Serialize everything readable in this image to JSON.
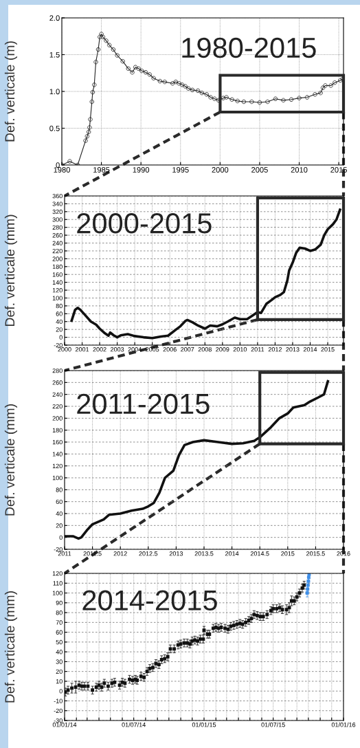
{
  "chart_data": [
    {
      "type": "line",
      "ylabel": "Def. verticale (m)",
      "annotations": [
        "1980-2015"
      ],
      "marker": "circle",
      "grid": true,
      "xlim": [
        1980,
        2015.6
      ],
      "xticks": [
        1980,
        1985,
        1990,
        1995,
        2000,
        2005,
        2010,
        2015
      ],
      "ylim": [
        0,
        2.0
      ],
      "yticks": [
        0,
        0.5,
        {
          "value": 1,
          "label": "1.0"
        },
        1.5,
        {
          "value": 2,
          "label": "2.0"
        }
      ],
      "x": [
        1980,
        1981,
        1982,
        1983,
        1983.2,
        1983.4,
        1983.5,
        1983.6,
        1983.8,
        1983.9,
        1984.1,
        1984.3,
        1984.6,
        1984.8,
        1985,
        1985.2,
        1985.6,
        1986.0,
        1986.5,
        1987.0,
        1987.7,
        1988.4,
        1988.9,
        1989.3,
        1989.7,
        1990.1,
        1990.6,
        1991.1,
        1991.6,
        1992.4,
        1993,
        1994,
        1994.4,
        1994.8,
        1995.2,
        1995.6,
        1996,
        1996.5,
        1997.2,
        1997.7,
        1998.3,
        1998.8,
        1999.3,
        1999.8,
        2000.4,
        2000.8,
        2001.5,
        2002.2,
        2003,
        2004,
        2005,
        2006,
        2007,
        2008,
        2009,
        2010,
        2011,
        2012,
        2012.7,
        2013,
        2013.3,
        2014,
        2014.5,
        2015.2,
        2015.5
      ],
      "series": [
        {
          "color": "#222222",
          "values": [
            0,
            0.05,
            0,
            0.33,
            0.39,
            0.45,
            0.51,
            0.62,
            0.86,
            0.99,
            1.09,
            1.4,
            1.57,
            1.74,
            1.78,
            1.74,
            1.69,
            1.63,
            1.57,
            1.49,
            1.41,
            1.31,
            1.26,
            1.33,
            1.31,
            1.28,
            1.26,
            1.23,
            1.18,
            1.14,
            1.13,
            1.11,
            1.13,
            1.11,
            1.09,
            1.07,
            1.04,
            1.02,
            1.01,
            0.98,
            0.96,
            0.92,
            0.9,
            0.88,
            0.91,
            0.92,
            0.89,
            0.87,
            0.86,
            0.86,
            0.85,
            0.86,
            0.9,
            0.88,
            0.89,
            0.91,
            0.92,
            0.96,
            0.98,
            1.05,
            1.08,
            1.08,
            1.12,
            1.15,
            1.17
          ]
        }
      ]
    },
    {
      "type": "line",
      "ylabel": "Def. verticale (mm)",
      "annotations": [
        "2000-2015"
      ],
      "grid": true,
      "xlim": [
        2000,
        2015.9
      ],
      "xticks": [
        2000,
        2001,
        2002,
        2003,
        2004,
        2005,
        2006,
        2007,
        2008,
        2009,
        2010,
        2011,
        2012,
        2013,
        2014,
        2015
      ],
      "ylim": [
        -20,
        360
      ],
      "yticks": [
        -20,
        0,
        20,
        40,
        60,
        80,
        100,
        120,
        140,
        160,
        180,
        200,
        220,
        240,
        260,
        280,
        300,
        320,
        340,
        360
      ],
      "x": [
        2000.4,
        2000.6,
        2000.75,
        2000.9,
        2001.2,
        2001.5,
        2001.8,
        2002.0,
        2002.3,
        2002.5,
        2002.6,
        2002.8,
        2003.0,
        2003.2,
        2003.6,
        2004.0,
        2004.5,
        2005.0,
        2005.5,
        2005.9,
        2006.3,
        2006.6,
        2006.9,
        2007.0,
        2007.3,
        2007.6,
        2008.0,
        2008.3,
        2008.7,
        2009.0,
        2009.3,
        2009.7,
        2010.0,
        2010.4,
        2010.7,
        2011.0,
        2011.2,
        2011.5,
        2011.8,
        2012.0,
        2012.3,
        2012.5,
        2012.7,
        2012.8,
        2013.0,
        2013.2,
        2013.4,
        2013.7,
        2014.0,
        2014.3,
        2014.6,
        2014.8,
        2015.0,
        2015.3,
        2015.5,
        2015.7
      ],
      "series": [
        {
          "color": "#111111",
          "values": [
            42,
            70,
            75,
            70,
            55,
            40,
            32,
            22,
            10,
            4,
            12,
            5,
            0,
            5,
            8,
            3,
            0,
            -2,
            2,
            4,
            18,
            28,
            42,
            44,
            38,
            30,
            22,
            30,
            28,
            33,
            40,
            50,
            46,
            46,
            55,
            64,
            62,
            85,
            95,
            102,
            108,
            115,
            145,
            170,
            190,
            215,
            228,
            226,
            220,
            224,
            236,
            260,
            275,
            288,
            300,
            325
          ]
        }
      ]
    },
    {
      "type": "line",
      "ylabel": "Def. verticale (mm)",
      "annotations": [
        "2011-2015"
      ],
      "grid": true,
      "xlim": [
        2011,
        2016
      ],
      "xticks": [
        2011,
        2011.5,
        2012,
        2012.5,
        2013,
        2013.5,
        2014,
        2014.5,
        2015,
        2015.5,
        2016
      ],
      "ylim": [
        -20,
        280
      ],
      "yticks": [
        -20,
        0,
        20,
        40,
        60,
        80,
        100,
        120,
        140,
        160,
        180,
        200,
        220,
        240,
        260,
        280
      ],
      "x": [
        2011.0,
        2011.15,
        2011.25,
        2011.3,
        2011.4,
        2011.5,
        2011.7,
        2011.8,
        2012.0,
        2012.2,
        2012.4,
        2012.5,
        2012.6,
        2012.7,
        2012.8,
        2012.9,
        2012.95,
        2013.05,
        2013.15,
        2013.3,
        2013.5,
        2013.75,
        2014.0,
        2014.2,
        2014.4,
        2014.5,
        2014.7,
        2014.85,
        2015.0,
        2015.1,
        2015.3,
        2015.4,
        2015.55,
        2015.65,
        2015.72
      ],
      "series": [
        {
          "color": "#111111",
          "values": [
            2,
            2,
            -2,
            0,
            12,
            22,
            30,
            38,
            40,
            45,
            48,
            52,
            58,
            75,
            100,
            108,
            112,
            138,
            155,
            160,
            163,
            160,
            157,
            158,
            162,
            168,
            185,
            200,
            208,
            218,
            222,
            228,
            235,
            240,
            262
          ]
        }
      ]
    },
    {
      "type": "scatter",
      "ylabel": "Def. verticale (mm)",
      "annotations": [
        "2014-2015"
      ],
      "grid": true,
      "marker": "square",
      "xlim": [
        "2014-01-01",
        "2016-01-01"
      ],
      "xticks": [
        {
          "value": "2014-01-01",
          "label": "01/01/14"
        },
        {
          "value": "2014-02-01",
          "label": null
        },
        {
          "value": "2014-03-01",
          "label": null
        },
        {
          "value": "2014-04-01",
          "label": null
        },
        {
          "value": "2014-05-01",
          "label": null
        },
        {
          "value": "2014-06-01",
          "label": null
        },
        {
          "value": "2014-07-01",
          "label": "01/07/14"
        },
        {
          "value": "2014-08-01",
          "label": null
        },
        {
          "value": "2014-09-01",
          "label": null
        },
        {
          "value": "2014-10-01",
          "label": null
        },
        {
          "value": "2014-11-01",
          "label": null
        },
        {
          "value": "2014-12-01",
          "label": null
        },
        {
          "value": "2015-01-01",
          "label": "01/01/15"
        },
        {
          "value": "2015-02-01",
          "label": null
        },
        {
          "value": "2015-03-01",
          "label": null
        },
        {
          "value": "2015-04-01",
          "label": null
        },
        {
          "value": "2015-05-01",
          "label": null
        },
        {
          "value": "2015-06-01",
          "label": null
        },
        {
          "value": "2015-07-01",
          "label": "01/07/15"
        },
        {
          "value": "2015-08-01",
          "label": null
        },
        {
          "value": "2015-09-01",
          "label": null
        },
        {
          "value": "2015-10-01",
          "label": null
        },
        {
          "value": "2015-11-01",
          "label": null
        },
        {
          "value": "2015-12-01",
          "label": null
        },
        {
          "value": "2016-01-01",
          "label": "01/01/16"
        }
      ],
      "ylim": [
        -30,
        120
      ],
      "yticks": [
        -30,
        -20,
        -10,
        0,
        10,
        20,
        30,
        40,
        50,
        60,
        70,
        80,
        90,
        100,
        110,
        120
      ],
      "series": [
        {
          "color": "#111111",
          "x": [
            "2014-01-03",
            "2014-01-10",
            "2014-01-20",
            "2014-01-30",
            "2014-02-08",
            "2014-02-15",
            "2014-02-22",
            "2014-03-03",
            "2014-03-15",
            "2014-03-25",
            "2014-04-01",
            "2014-04-08",
            "2014-04-15",
            "2014-04-25",
            "2014-05-05",
            "2014-05-12",
            "2014-05-25",
            "2014-06-01",
            "2014-06-08",
            "2014-06-20",
            "2014-06-28",
            "2014-07-05",
            "2014-07-10",
            "2014-07-20",
            "2014-07-28",
            "2014-08-05",
            "2014-08-12",
            "2014-08-20",
            "2014-08-28",
            "2014-09-05",
            "2014-09-12",
            "2014-09-20",
            "2014-09-28",
            "2014-10-05",
            "2014-10-15",
            "2014-10-25",
            "2014-11-01",
            "2014-11-10",
            "2014-11-18",
            "2014-11-25",
            "2014-12-01",
            "2014-12-08",
            "2014-12-15",
            "2014-12-22",
            "2014-12-30",
            "2015-01-01",
            "2015-01-10",
            "2015-01-15",
            "2015-01-25",
            "2015-02-01",
            "2015-02-08",
            "2015-02-15",
            "2015-02-25",
            "2015-03-05",
            "2015-03-12",
            "2015-03-20",
            "2015-03-28",
            "2015-04-05",
            "2015-04-12",
            "2015-04-20",
            "2015-04-28",
            "2015-05-05",
            "2015-05-12",
            "2015-05-20",
            "2015-05-28",
            "2015-06-05",
            "2015-06-15",
            "2015-06-25",
            "2015-07-01",
            "2015-07-10",
            "2015-07-18",
            "2015-07-25",
            "2015-08-05",
            "2015-08-12",
            "2015-08-18",
            "2015-08-25",
            "2015-09-01",
            "2015-09-08",
            "2015-09-15",
            "2015-09-20"
          ],
          "values": [
            -1,
            1,
            3,
            4,
            6,
            5,
            5,
            5,
            1,
            4,
            6,
            4,
            8,
            5,
            8,
            9,
            6,
            9,
            8,
            12,
            11,
            12,
            11,
            15,
            14,
            20,
            23,
            24,
            28,
            27,
            32,
            33,
            35,
            43,
            43,
            47,
            48,
            49,
            49,
            48,
            51,
            52,
            51,
            53,
            53,
            62,
            58,
            58,
            64,
            65,
            64,
            65,
            64,
            63,
            66,
            67,
            68,
            69,
            68,
            70,
            72,
            74,
            78,
            77,
            76,
            76,
            78,
            82,
            84,
            84,
            85,
            83,
            83,
            85,
            92,
            92,
            96,
            100,
            105,
            108
          ],
          "errors": [
            4,
            4,
            5,
            6,
            4,
            4,
            4,
            4,
            4,
            4,
            4,
            4,
            4,
            4,
            4,
            4,
            4,
            4,
            4,
            4,
            4,
            4,
            4,
            4,
            4,
            4,
            4,
            4,
            4,
            4,
            4,
            4,
            4,
            4,
            4,
            4,
            4,
            4,
            4,
            4,
            4,
            4,
            4,
            4,
            4,
            4,
            4,
            4,
            4,
            4,
            4,
            4,
            4,
            4,
            4,
            4,
            4,
            4,
            4,
            4,
            4,
            4,
            4,
            4,
            4,
            4,
            4,
            4,
            4,
            4,
            4,
            4,
            5,
            5,
            5,
            4,
            4,
            4,
            4,
            4
          ]
        },
        {
          "color": "#3f8fe8",
          "x": [
            "2015-09-28",
            "2015-09-29",
            "2015-09-30",
            "2015-10-01",
            "2015-10-02",
            "2015-10-03"
          ],
          "values": [
            100,
            104,
            108,
            112,
            116,
            119
          ],
          "errors": [
            4,
            4,
            4,
            4,
            4,
            4
          ]
        }
      ]
    }
  ]
}
